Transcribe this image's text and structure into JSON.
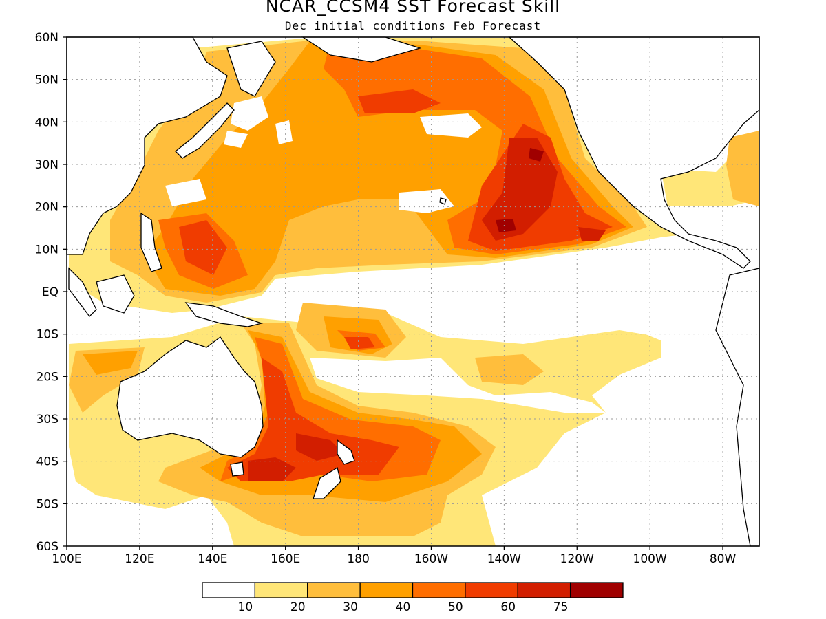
{
  "title": "NCAR_CCSM4 SST Forecast Skill",
  "subtitle": "Dec initial conditions  Feb Forecast",
  "lat_labels": [
    "60N",
    "50N",
    "40N",
    "30N",
    "20N",
    "10N",
    "EQ",
    "10S",
    "20S",
    "30S",
    "40S",
    "50S",
    "60S"
  ],
  "lon_labels": [
    "100E",
    "120E",
    "140E",
    "160E",
    "180",
    "160W",
    "140W",
    "120W",
    "100W",
    "80W"
  ],
  "legend": {
    "thresholds": [
      "10",
      "20",
      "30",
      "40",
      "50",
      "60",
      "75"
    ],
    "colors": [
      "#ffffff",
      "#ffe678",
      "#ffbe3c",
      "#ffa000",
      "#ff6e00",
      "#f03c00",
      "#d21e00",
      "#a00000"
    ]
  },
  "colors": {
    "land_outline": "#000000",
    "grid": "#999999"
  }
}
